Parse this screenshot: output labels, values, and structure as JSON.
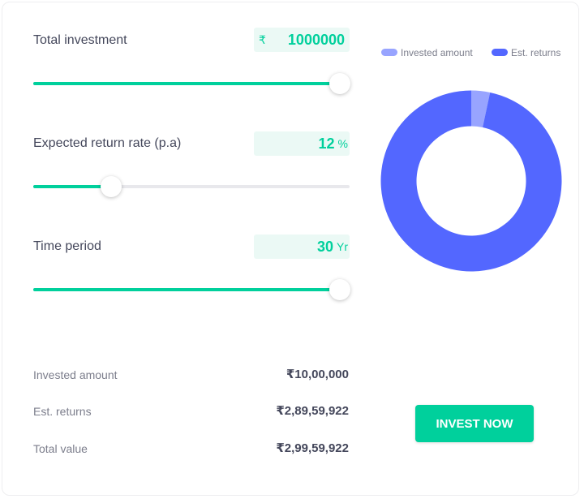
{
  "inputs": {
    "investment": {
      "label": "Total investment",
      "currency": "₹",
      "value": "1000000",
      "slider_fraction": 0.97
    },
    "rate": {
      "label": "Expected return rate (p.a)",
      "value": "12",
      "unit": "%",
      "slider_fraction": 0.245
    },
    "period": {
      "label": "Time period",
      "value": "30",
      "unit": "Yr",
      "slider_fraction": 0.97
    }
  },
  "results": {
    "invested_label": "Invested amount",
    "invested_value": "₹10,00,000",
    "returns_label": "Est. returns",
    "returns_value": "₹2,89,59,922",
    "total_label": "Total value",
    "total_value": "₹2,99,59,922"
  },
  "chart_data": {
    "type": "pie",
    "subtype": "donut",
    "legend_position": "top",
    "series": [
      {
        "name": "Invested amount",
        "value": 1000000,
        "color": "#98a4ff"
      },
      {
        "name": "Est. returns",
        "value": 28959922,
        "color": "#5367ff"
      }
    ]
  },
  "cta": {
    "label": "INVEST NOW"
  },
  "colors": {
    "accent": "#00d09c",
    "invested": "#98a4ff",
    "returns": "#5367ff"
  }
}
